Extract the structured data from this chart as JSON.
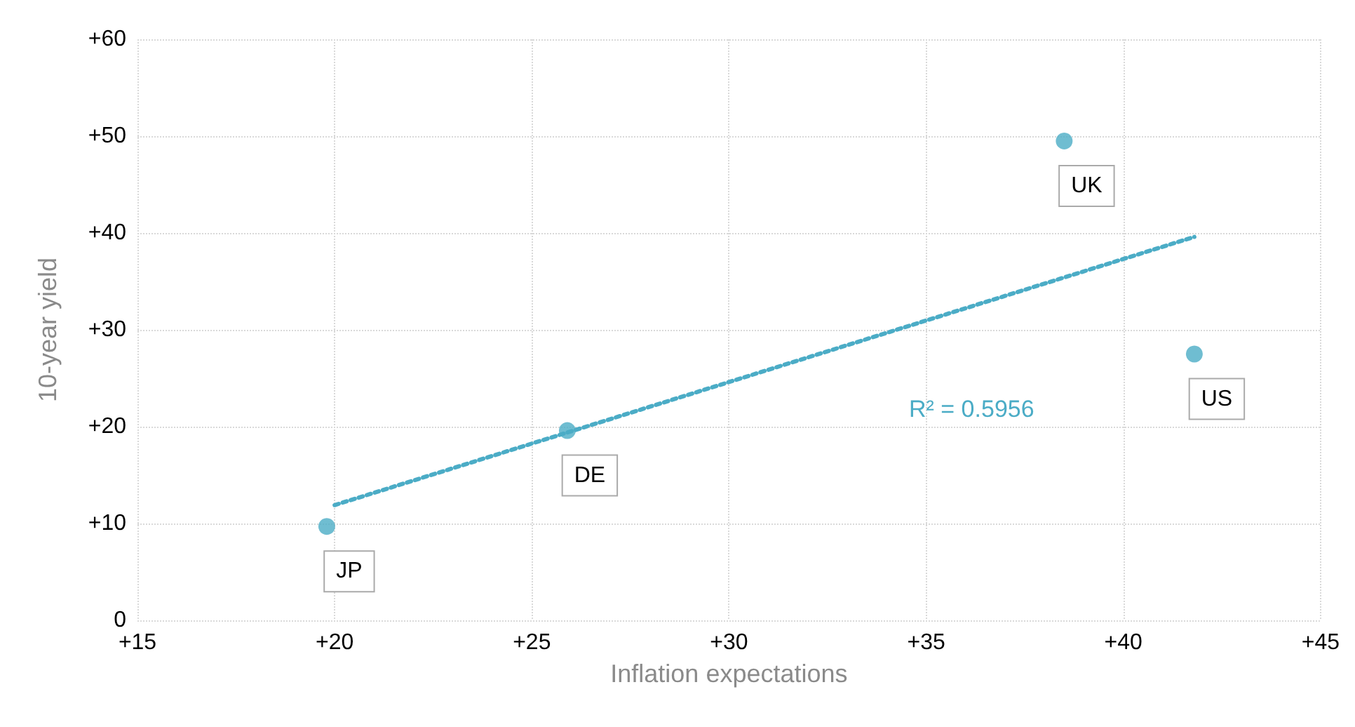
{
  "chart_data": {
    "type": "scatter",
    "xlabel": "Inflation expectations",
    "ylabel": "10-year yield",
    "xlim": [
      15,
      45
    ],
    "xticks": [
      {
        "value": 15,
        "label": "+15"
      },
      {
        "value": 20,
        "label": "+20"
      },
      {
        "value": 25,
        "label": "+25"
      },
      {
        "value": 30,
        "label": "+30"
      },
      {
        "value": 35,
        "label": "+35"
      },
      {
        "value": 40,
        "label": "+40"
      },
      {
        "value": 45,
        "label": "+45"
      }
    ],
    "ylim": [
      0,
      60
    ],
    "yticks": [
      0,
      {
        "value": 10,
        "label": "+10"
      },
      {
        "value": 20,
        "label": "+20"
      },
      {
        "value": 30,
        "label": "+30"
      },
      {
        "value": 40,
        "label": "+40"
      },
      {
        "value": 50,
        "label": "+50"
      },
      {
        "value": 60,
        "label": "+60"
      }
    ],
    "grid": true,
    "series": [
      {
        "color": "#4bacc6",
        "marker": "circle",
        "x": [
          19.8,
          25.9,
          38.5,
          41.8
        ],
        "values": [
          9.7,
          19.6,
          49.5,
          27.5
        ]
      },
      {
        "type": "line",
        "color": "#4bacc6",
        "marker": "none",
        "line_style": "dotted",
        "x": [
          20.0,
          41.8
        ],
        "values": [
          11.9,
          39.6
        ]
      }
    ],
    "annotations": [
      {
        "text": "JP",
        "x": 19.8,
        "y": 9.7
      },
      {
        "text": "DE",
        "x": 25.9,
        "y": 19.6
      },
      {
        "text": "UK",
        "x": 38.5,
        "y": 49.5
      },
      {
        "text": "US",
        "x": 41.8,
        "y": 27.5
      },
      "R² = 0.5956"
    ]
  }
}
